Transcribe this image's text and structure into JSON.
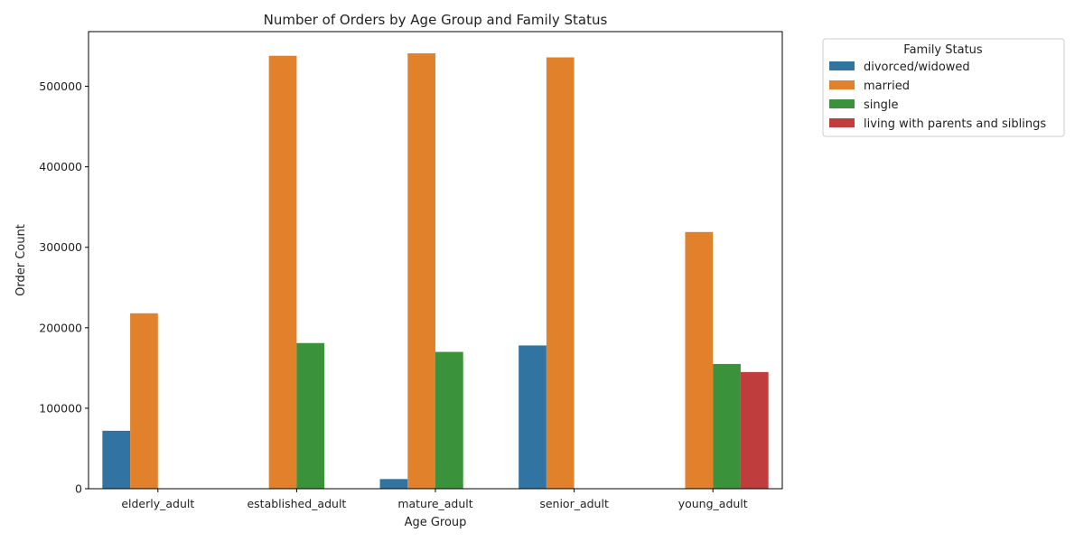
{
  "chart_data": {
    "type": "bar",
    "title": "Number of Orders by Age Group and Family Status",
    "xlabel": "Age Group",
    "ylabel": "Order Count",
    "categories": [
      "elderly_adult",
      "established_adult",
      "mature_adult",
      "senior_adult",
      "young_adult"
    ],
    "ylim": [
      0,
      568000
    ],
    "yticks": [
      0,
      100000,
      200000,
      300000,
      400000,
      500000
    ],
    "ytick_labels": [
      "0",
      "100000",
      "200000",
      "300000",
      "400000",
      "500000"
    ],
    "grid": false,
    "legend": {
      "title": "Family Status",
      "placement": "outside-top-right"
    },
    "series": [
      {
        "name": "divorced/widowed",
        "color": "#3274a1",
        "values": [
          72000,
          0,
          12000,
          178000,
          0
        ]
      },
      {
        "name": "married",
        "color": "#e1812c",
        "values": [
          218000,
          538000,
          541000,
          536000,
          319000
        ]
      },
      {
        "name": "single",
        "color": "#3a923a",
        "values": [
          0,
          181000,
          170000,
          0,
          155000
        ]
      },
      {
        "name": "living with parents and siblings",
        "color": "#c03d3e",
        "values": [
          0,
          0,
          0,
          0,
          145000
        ]
      }
    ]
  }
}
